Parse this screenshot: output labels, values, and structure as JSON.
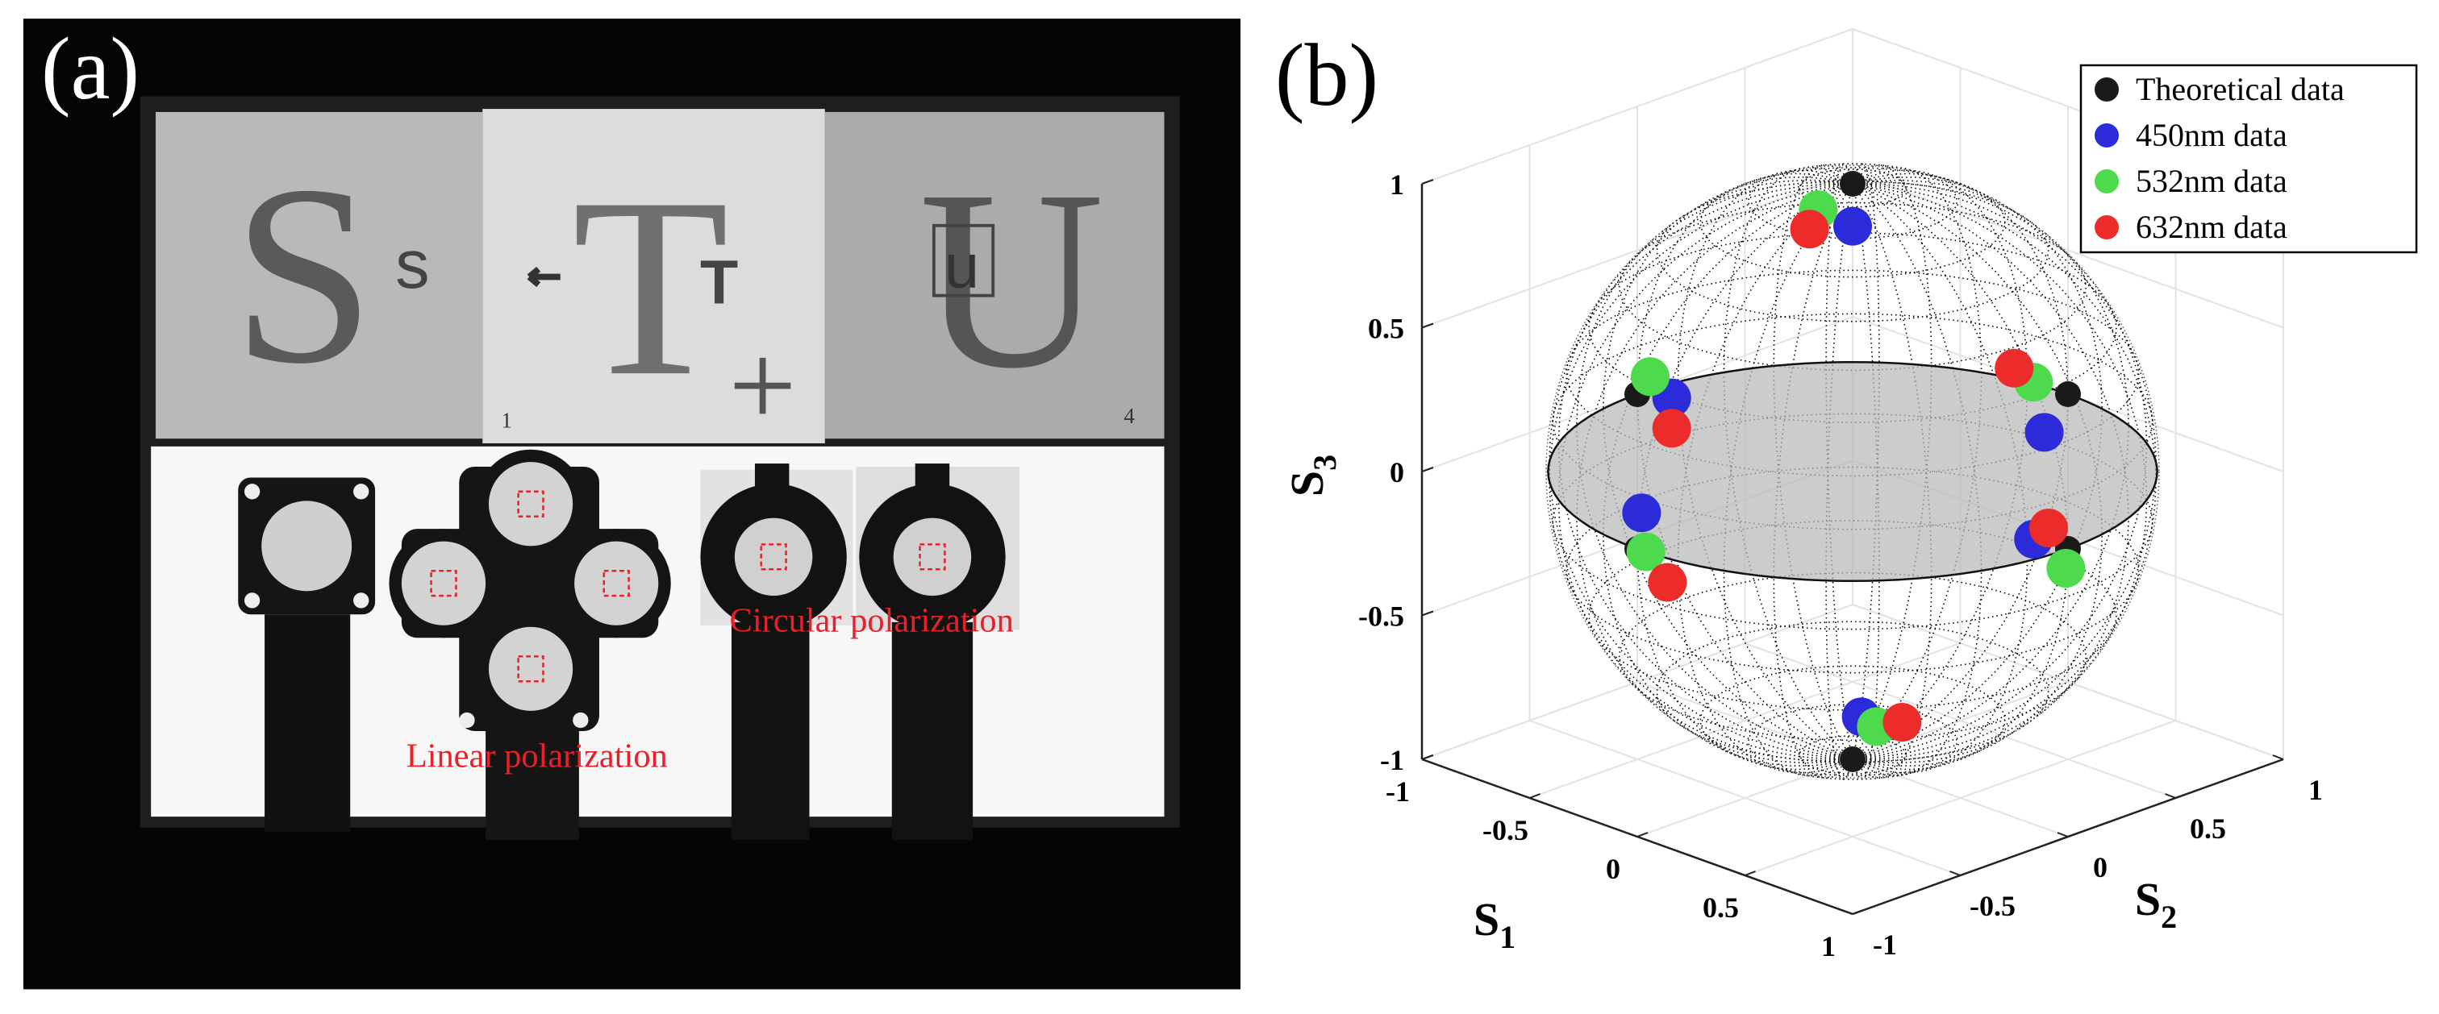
{
  "panels": [
    {
      "label": "(a)",
      "photo_letters": [
        "S",
        "T",
        "U"
      ],
      "photo_small_letters": [
        "s",
        "T",
        "u"
      ],
      "photo_corner_marks": [
        "1",
        "4"
      ],
      "annotations": [
        "Linear polarization",
        "Circular polarization"
      ]
    }
  ],
  "chart_data": {
    "type": "scatter3d",
    "label": "(b)",
    "xlabel": {
      "base": "S",
      "sub": "1"
    },
    "ylabel": {
      "base": "S",
      "sub": "2"
    },
    "zlabel": {
      "base": "S",
      "sub": "3"
    },
    "xlim": [
      -1,
      1
    ],
    "ylim": [
      -1,
      1
    ],
    "zlim": [
      -1,
      1
    ],
    "xticks": [
      -1,
      -0.5,
      0,
      0.5,
      1
    ],
    "yticks": [
      -1,
      -0.5,
      0,
      0.5,
      1
    ],
    "zticks": [
      -1,
      -0.5,
      0,
      0.5,
      1
    ],
    "grid": true,
    "legend": "upper right",
    "series": [
      {
        "name": "Theoretical data",
        "color": "#1a1a1a",
        "x": [
          0,
          0,
          -1,
          0,
          1,
          0
        ],
        "y": [
          0,
          0,
          0,
          1,
          0,
          -1
        ],
        "z": [
          1,
          -1,
          0,
          0,
          0,
          0
        ]
      },
      {
        "name": "450nm data",
        "color": "#2b2bd9",
        "x": [
          0.2,
          -0.18,
          -0.97,
          -0.05,
          0.95,
          0.0
        ],
        "y": [
          -0.2,
          0.22,
          0.13,
          0.94,
          -0.11,
          -0.98
        ],
        "z": [
          0.96,
          -0.96,
          -0.04,
          -0.13,
          0.05,
          0.12
        ]
      },
      {
        "name": "532nm data",
        "color": "#4ddb4d",
        "x": [
          0.05,
          -0.1,
          -0.99,
          -0.12,
          0.99,
          0.02
        ],
        "y": [
          -0.21,
          0.21,
          0.05,
          0.96,
          0,
          -0.98
        ],
        "z": [
          0.98,
          -0.97,
          0.05,
          0.02,
          -0.07,
          -0.01
        ]
      },
      {
        "name": "632nm data",
        "color": "#ec2b2b",
        "x": [
          0.1,
          -0.05,
          -0.96,
          -0.2,
          0.95,
          0.1
        ],
        "y": [
          -0.3,
          0.28,
          0.12,
          0.95,
          -0.04,
          -0.96
        ],
        "z": [
          0.95,
          -0.96,
          -0.14,
          0.05,
          0.07,
          -0.1
        ]
      }
    ]
  }
}
